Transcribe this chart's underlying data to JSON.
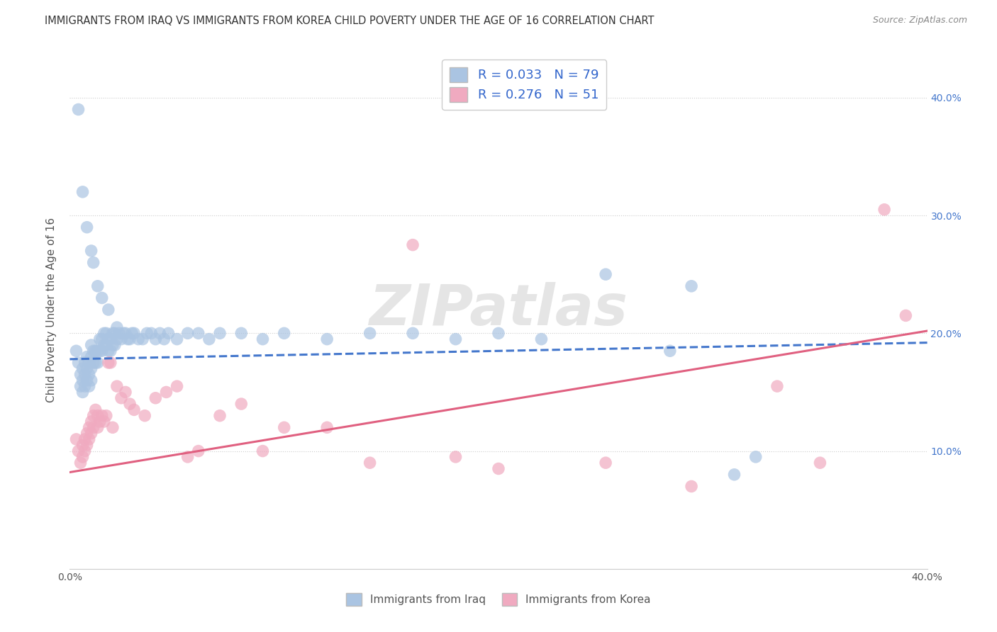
{
  "title": "IMMIGRANTS FROM IRAQ VS IMMIGRANTS FROM KOREA CHILD POVERTY UNDER THE AGE OF 16 CORRELATION CHART",
  "source": "Source: ZipAtlas.com",
  "ylabel": "Child Poverty Under the Age of 16",
  "xlim": [
    0.0,
    0.4
  ],
  "ylim": [
    0.0,
    0.44
  ],
  "ytick_positions": [
    0.0,
    0.1,
    0.2,
    0.3,
    0.4
  ],
  "iraq_R": 0.033,
  "iraq_N": 79,
  "korea_R": 0.276,
  "korea_N": 51,
  "iraq_color": "#aac4e2",
  "korea_color": "#f0aac0",
  "iraq_line_color": "#4477cc",
  "korea_line_color": "#e06080",
  "background_color": "#ffffff",
  "watermark_text": "ZIPatlas",
  "legend_label_iraq": "Immigrants from Iraq",
  "legend_label_korea": "Immigrants from Korea",
  "iraq_line_intercept": 0.178,
  "iraq_line_slope": 0.035,
  "korea_line_intercept": 0.082,
  "korea_line_slope": 0.3,
  "iraq_x": [
    0.003,
    0.004,
    0.005,
    0.005,
    0.006,
    0.006,
    0.006,
    0.007,
    0.007,
    0.007,
    0.008,
    0.008,
    0.008,
    0.009,
    0.009,
    0.009,
    0.01,
    0.01,
    0.01,
    0.01,
    0.011,
    0.011,
    0.012,
    0.012,
    0.013,
    0.013,
    0.014,
    0.014,
    0.015,
    0.015,
    0.016,
    0.016,
    0.017,
    0.017,
    0.018,
    0.018,
    0.019,
    0.019,
    0.02,
    0.02,
    0.021,
    0.021,
    0.022,
    0.022,
    0.023,
    0.024,
    0.025,
    0.026,
    0.027,
    0.028,
    0.029,
    0.03,
    0.032,
    0.034,
    0.036,
    0.038,
    0.04,
    0.042,
    0.044,
    0.046,
    0.05,
    0.055,
    0.06,
    0.065,
    0.07,
    0.08,
    0.09,
    0.1,
    0.12,
    0.14,
    0.16,
    0.18,
    0.2,
    0.22,
    0.25,
    0.28,
    0.29,
    0.31,
    0.32
  ],
  "iraq_y": [
    0.185,
    0.175,
    0.165,
    0.155,
    0.17,
    0.16,
    0.15,
    0.175,
    0.165,
    0.155,
    0.18,
    0.17,
    0.16,
    0.175,
    0.165,
    0.155,
    0.19,
    0.18,
    0.17,
    0.16,
    0.185,
    0.175,
    0.185,
    0.175,
    0.185,
    0.175,
    0.195,
    0.185,
    0.195,
    0.185,
    0.2,
    0.19,
    0.2,
    0.19,
    0.195,
    0.185,
    0.195,
    0.185,
    0.2,
    0.19,
    0.2,
    0.19,
    0.205,
    0.195,
    0.2,
    0.195,
    0.2,
    0.2,
    0.195,
    0.195,
    0.2,
    0.2,
    0.195,
    0.195,
    0.2,
    0.2,
    0.195,
    0.2,
    0.195,
    0.2,
    0.195,
    0.2,
    0.2,
    0.195,
    0.2,
    0.2,
    0.195,
    0.2,
    0.195,
    0.2,
    0.2,
    0.195,
    0.2,
    0.195,
    0.25,
    0.185,
    0.24,
    0.08,
    0.095
  ],
  "iraq_y_outliers": [
    0.39,
    0.32,
    0.29,
    0.27,
    0.26,
    0.24,
    0.23,
    0.22
  ],
  "iraq_x_outliers": [
    0.004,
    0.006,
    0.008,
    0.01,
    0.011,
    0.013,
    0.015,
    0.018
  ],
  "korea_x": [
    0.003,
    0.004,
    0.005,
    0.006,
    0.006,
    0.007,
    0.007,
    0.008,
    0.008,
    0.009,
    0.009,
    0.01,
    0.01,
    0.011,
    0.011,
    0.012,
    0.013,
    0.013,
    0.014,
    0.015,
    0.016,
    0.017,
    0.018,
    0.019,
    0.02,
    0.022,
    0.024,
    0.026,
    0.028,
    0.03,
    0.035,
    0.04,
    0.045,
    0.05,
    0.055,
    0.06,
    0.07,
    0.08,
    0.09,
    0.1,
    0.12,
    0.14,
    0.16,
    0.18,
    0.2,
    0.25,
    0.29,
    0.33,
    0.35,
    0.38,
    0.39
  ],
  "korea_y": [
    0.11,
    0.1,
    0.09,
    0.105,
    0.095,
    0.11,
    0.1,
    0.115,
    0.105,
    0.12,
    0.11,
    0.125,
    0.115,
    0.13,
    0.12,
    0.135,
    0.13,
    0.12,
    0.125,
    0.13,
    0.125,
    0.13,
    0.175,
    0.175,
    0.12,
    0.155,
    0.145,
    0.15,
    0.14,
    0.135,
    0.13,
    0.145,
    0.15,
    0.155,
    0.095,
    0.1,
    0.13,
    0.14,
    0.1,
    0.12,
    0.12,
    0.09,
    0.275,
    0.095,
    0.085,
    0.09,
    0.07,
    0.155,
    0.09,
    0.305,
    0.215
  ]
}
